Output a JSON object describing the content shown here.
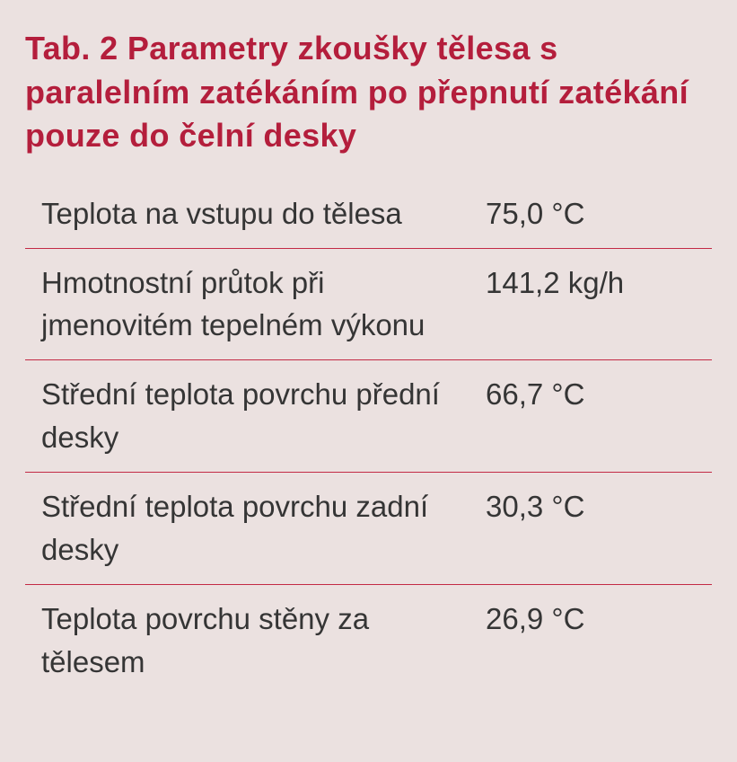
{
  "title": "Tab. 2 Parametry zkoušky tělesa s paralelním zatékáním po přepnutí zatékání pouze do čelní desky",
  "table": {
    "rows": [
      {
        "label": "Teplota na vstupu do tělesa",
        "value": "75,0 °C"
      },
      {
        "label": "Hmotnostní průtok při jmenovitém tepelném výkonu",
        "value": "141,2 kg/h"
      },
      {
        "label": "Střední teplota povrchu přední desky",
        "value": "66,7 °C"
      },
      {
        "label": "Střední teplota povrchu zadní desky",
        "value": "30,3 °C"
      },
      {
        "label": "Teplota povrchu stěny za tělesem",
        "value": "26,9 °C"
      }
    ]
  },
  "colors": {
    "background": "#ebe1e0",
    "title": "#b41e3c",
    "row_border": "#c32a45",
    "text": "#353535"
  },
  "typography": {
    "title_fontsize": 36,
    "title_fontweight": 600,
    "body_fontsize": 33,
    "body_fontweight": 400
  },
  "layout": {
    "label_col_width": 495,
    "row_padding_left": 18
  }
}
